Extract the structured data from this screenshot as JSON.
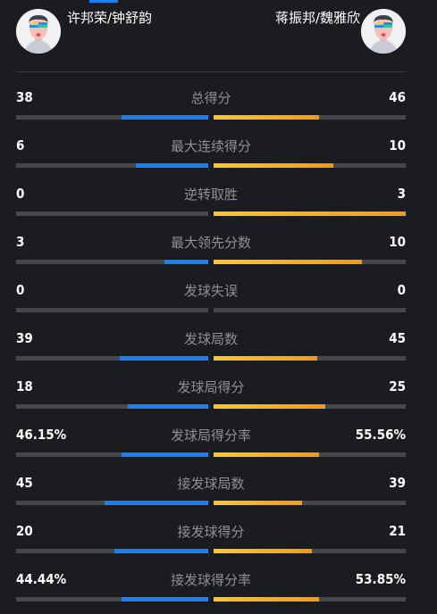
{
  "colors": {
    "background": "#1b1c20",
    "left_bar": "#1a7ff5",
    "right_bar": "#f7a51a",
    "track": "#46474b",
    "label": "#8f9094"
  },
  "header": {
    "left_team": {
      "name": "许邦荣/钟舒韵",
      "avatar_icon": "player-avatar-icon"
    },
    "right_team": {
      "name": "蒋振邦/魏雅欣",
      "avatar_icon": "player-avatar-icon"
    }
  },
  "stats": [
    {
      "label": "总得分",
      "left": "38",
      "right": "46",
      "left_fill": 0.45,
      "right_fill": 0.55
    },
    {
      "label": "最大连续得分",
      "left": "6",
      "right": "10",
      "left_fill": 0.375,
      "right_fill": 0.625
    },
    {
      "label": "逆转取胜",
      "left": "0",
      "right": "3",
      "left_fill": 0.0,
      "right_fill": 1.0
    },
    {
      "label": "最大领先分数",
      "left": "3",
      "right": "10",
      "left_fill": 0.23,
      "right_fill": 0.77
    },
    {
      "label": "发球失误",
      "left": "0",
      "right": "0",
      "left_fill": 0.0,
      "right_fill": 0.0
    },
    {
      "label": "发球局数",
      "left": "39",
      "right": "45",
      "left_fill": 0.46,
      "right_fill": 0.54
    },
    {
      "label": "发球局得分",
      "left": "18",
      "right": "25",
      "left_fill": 0.42,
      "right_fill": 0.58
    },
    {
      "label": "发球局得分率",
      "left": "46.15%",
      "right": "55.56%",
      "left_fill": 0.45,
      "right_fill": 0.55
    },
    {
      "label": "接发球局数",
      "left": "45",
      "right": "39",
      "left_fill": 0.54,
      "right_fill": 0.46
    },
    {
      "label": "接发球得分",
      "left": "20",
      "right": "21",
      "left_fill": 0.49,
      "right_fill": 0.51
    },
    {
      "label": "接发球得分率",
      "left": "44.44%",
      "right": "53.85%",
      "left_fill": 0.45,
      "right_fill": 0.55
    }
  ]
}
